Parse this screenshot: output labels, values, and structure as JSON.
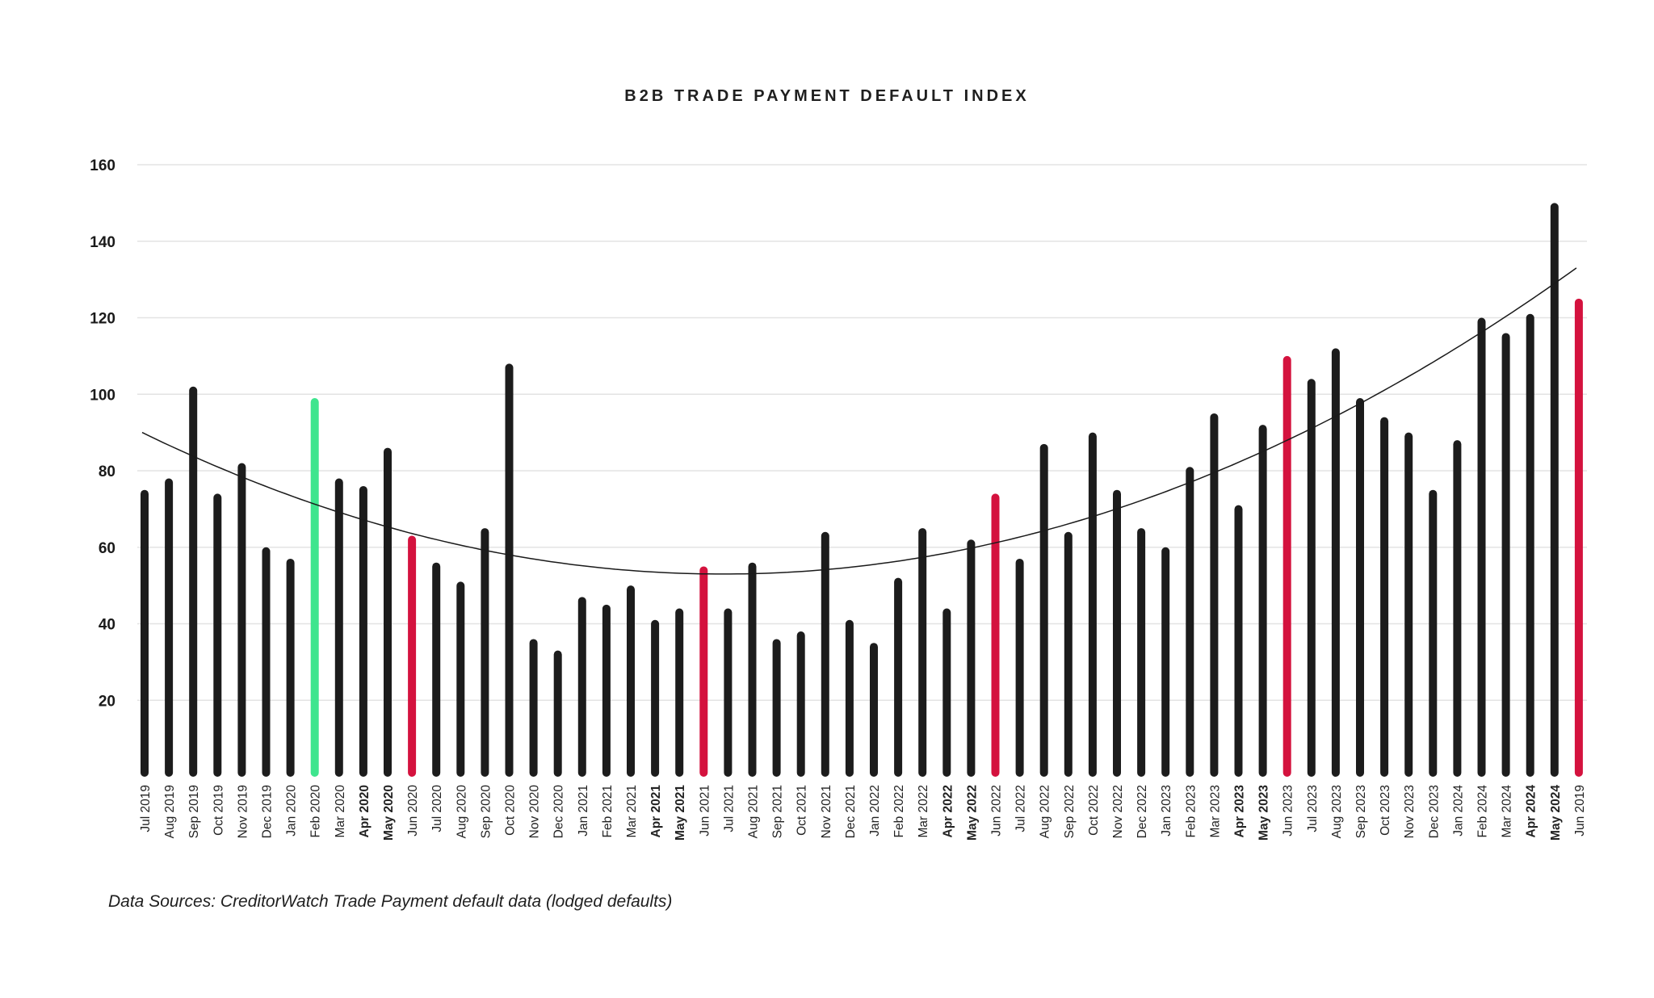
{
  "chart_data": {
    "type": "bar",
    "title": "B2B TRADE PAYMENT DEFAULT INDEX",
    "xlabel": "",
    "ylabel": "",
    "ylim": [
      0,
      160
    ],
    "yticks": [
      20,
      40,
      60,
      80,
      100,
      120,
      140,
      160
    ],
    "grid": true,
    "legend": "none",
    "trendline": "quadratic",
    "colors": {
      "bar": "#1c1c1c",
      "highlight_red": "#d4123e",
      "highlight_green": "#3ee58e",
      "trend": "#1a1a1a",
      "grid": "#e3e3e3"
    },
    "categories": [
      "Jul 2019",
      "Aug 2019",
      "Sep 2019",
      "Oct 2019",
      "Nov 2019",
      "Dec 2019",
      "Jan 2020",
      "Feb 2020",
      "Mar 2020",
      "Apr 2020",
      "May 2020",
      "Jun 2020",
      "Jul 2020",
      "Aug 2020",
      "Sep 2020",
      "Oct 2020",
      "Nov 2020",
      "Dec 2020",
      "Jan 2021",
      "Feb 2021",
      "Mar 2021",
      "Apr 2021",
      "May 2021",
      "Jun 2021",
      "Jul 2021",
      "Aug 2021",
      "Sep 2021",
      "Oct 2021",
      "Nov 2021",
      "Dec 2021",
      "Jan 2022",
      "Feb 2022",
      "Mar 2022",
      "Apr 2022",
      "May 2022",
      "Jun 2022",
      "Jul 2022",
      "Aug 2022",
      "Sep 2022",
      "Oct 2022",
      "Nov 2022",
      "Dec 2022",
      "Jan 2023",
      "Feb 2023",
      "Mar 2023",
      "Apr 2023",
      "May 2023",
      "Jun 2023",
      "Jul 2023",
      "Aug 2023",
      "Sep 2023",
      "Oct 2023",
      "Nov 2023",
      "Dec 2023",
      "Jan 2024",
      "Feb 2024",
      "Mar 2024",
      "Apr 2024",
      "May 2024",
      "Jun 2019"
    ],
    "bold_categories": [
      "Apr 2020",
      "May 2020",
      "Apr 2021",
      "May 2021",
      "Apr 2022",
      "May 2022",
      "Apr 2023",
      "May 2023",
      "Apr 2024",
      "May 2024"
    ],
    "values": [
      75,
      78,
      102,
      74,
      82,
      60,
      57,
      99,
      78,
      76,
      86,
      63,
      56,
      51,
      65,
      108,
      36,
      33,
      47,
      45,
      50,
      41,
      44,
      55,
      44,
      56,
      36,
      38,
      64,
      41,
      35,
      52,
      65,
      44,
      62,
      74,
      57,
      87,
      64,
      90,
      75,
      65,
      60,
      81,
      95,
      71,
      92,
      110,
      104,
      112,
      99,
      94,
      90,
      75,
      88,
      120,
      116,
      121,
      150,
      125
    ],
    "highlights": {
      "Feb 2020": "green",
      "Jun 2020": "red",
      "Jun 2021": "red",
      "Jun 2022": "red",
      "Jun 2023": "red",
      "Jun 2019": "red"
    },
    "trend_values": [
      90,
      53,
      133
    ]
  },
  "footer": {
    "source_note": "Data Sources: CreditorWatch Trade Payment default data (lodged defaults)"
  }
}
